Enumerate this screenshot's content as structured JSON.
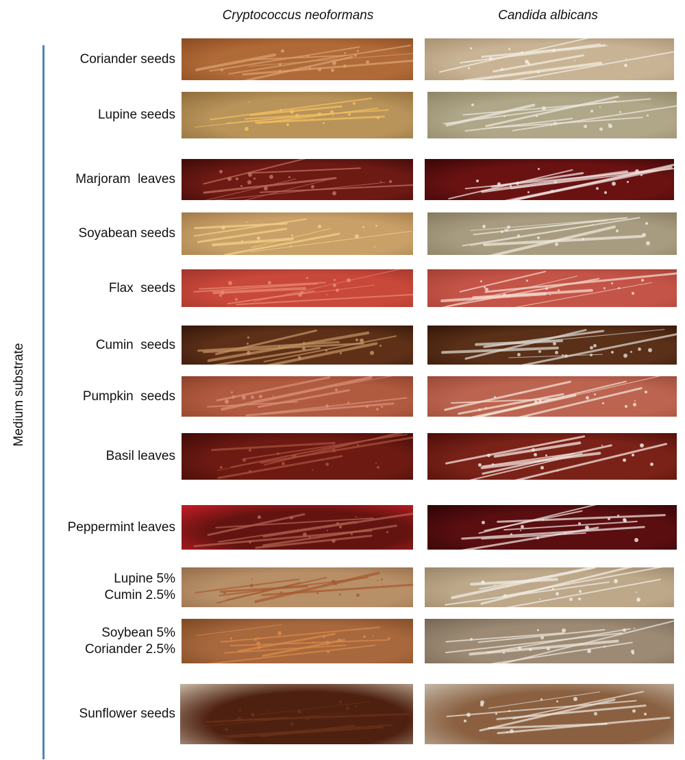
{
  "columns": {
    "left": "Cryptococcus neoformans",
    "right": "Candida albicans"
  },
  "axis_label": "Medium substrate",
  "rows": [
    {
      "label": "Coriander seeds",
      "left": {
        "base": "#b06a38",
        "edge": "#8a4a20",
        "growth": "#d9a070"
      },
      "right": {
        "base": "#c8b394",
        "edge": "#a89070",
        "growth": "#f2ece0"
      }
    },
    {
      "label": "Lupine seeds",
      "left": {
        "base": "#b8935a",
        "edge": "#8e6c3a",
        "growth": "#f2c060"
      },
      "right": {
        "base": "#b0a688",
        "edge": "#8f8566",
        "growth": "#e9e6dc"
      }
    },
    {
      "label": "Marjoram  leaves",
      "left": {
        "base": "#6e1a14",
        "edge": "#3e0a08",
        "growth": "#c07060"
      },
      "right": {
        "base": "#6a1212",
        "edge": "#3a0606",
        "growth": "#efe2de"
      }
    },
    {
      "label": "Soyabean seeds",
      "left": {
        "base": "#c9a068",
        "edge": "#a07a48",
        "growth": "#f2d088"
      },
      "right": {
        "base": "#a89c80",
        "edge": "#857a60",
        "growth": "#ede8dc"
      }
    },
    {
      "label": "Flax  seeds",
      "left": {
        "base": "#c8483a",
        "edge": "#a0342a",
        "growth": "#e88876"
      },
      "right": {
        "base": "#c45448",
        "edge": "#a43e34",
        "growth": "#f4d8cc"
      }
    },
    {
      "label": "Cumin  seeds",
      "left": {
        "base": "#5e3018",
        "edge": "#321608",
        "growth": "#c09060"
      },
      "right": {
        "base": "#5a3018",
        "edge": "#321608",
        "growth": "#d8d4cc"
      }
    },
    {
      "label": "Pumpkin  seeds",
      "left": {
        "base": "#b05a40",
        "edge": "#8e402a",
        "growth": "#d89078"
      },
      "right": {
        "base": "#bc6450",
        "edge": "#9a4838",
        "growth": "#f2e2d6"
      }
    },
    {
      "label": "Basil leaves",
      "left": {
        "base": "#6c1a12",
        "edge": "#400a06",
        "growth": "#a8503e"
      },
      "right": {
        "base": "#7a2218",
        "edge": "#4a0e08",
        "growth": "#f4e6e0"
      }
    },
    {
      "label": "Peppermint leaves",
      "left": {
        "base": "#641410",
        "edge": "#c81c28",
        "growth": "#b06050"
      },
      "right": {
        "base": "#5a0e10",
        "edge": "#2e0406",
        "growth": "#ece0dc"
      }
    },
    {
      "label": "Lupine 5%\nCumin 2.5%",
      "left": {
        "base": "#b89068",
        "edge": "#946c48",
        "growth": "#a85a30"
      },
      "right": {
        "base": "#bda88a",
        "edge": "#9a8668",
        "growth": "#f2ece4"
      }
    },
    {
      "label": "Soybean 5%\nCoriander 2.5%",
      "left": {
        "base": "#a8683e",
        "edge": "#7c4822",
        "growth": "#d88a4a"
      },
      "right": {
        "base": "#9c8a74",
        "edge": "#766654",
        "growth": "#ece4da"
      }
    },
    {
      "label": "Sunflower seeds",
      "left": {
        "base": "#4e2010",
        "edge": "#c8b8a4",
        "growth": "#6a3018"
      },
      "right": {
        "base": "#8a6040",
        "edge": "#c4b8a8",
        "growth": "#e8e2d8"
      }
    }
  ]
}
